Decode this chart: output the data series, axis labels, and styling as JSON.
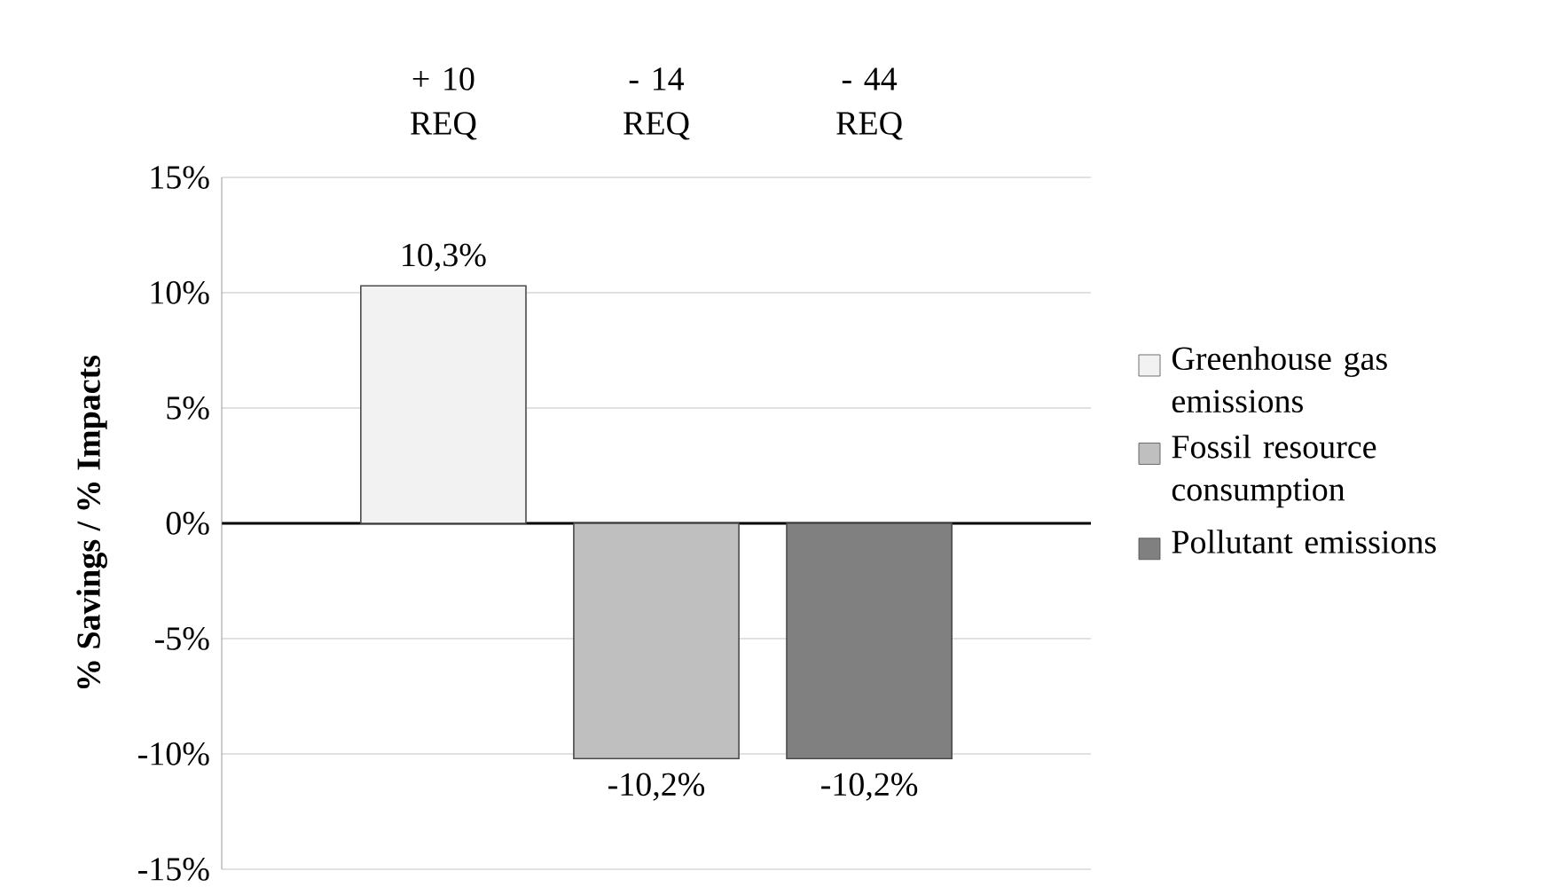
{
  "chart_data": {
    "type": "bar",
    "ylabel": "% Savings / % Impacts",
    "categories": [
      null
    ],
    "series": [
      {
        "name": "Greenhouse gas emissions",
        "color": "#f2f2f2",
        "values": [
          10.3
        ],
        "value_labels": [
          "10,3%"
        ]
      },
      {
        "name": "Fossil resource consumption",
        "color": "#bfbfbf",
        "values": [
          -10.2
        ],
        "value_labels": [
          "-10,2%"
        ]
      },
      {
        "name": "Pollutant emissions",
        "color": "#808080",
        "values": [
          -10.2
        ],
        "value_labels": [
          "-10,2%"
        ]
      }
    ],
    "annotations": [
      "+ 10 REQ",
      "- 14 REQ",
      "- 44 REQ"
    ],
    "ylim": [
      -15,
      15
    ],
    "yticks": [
      {
        "value": -15,
        "label": "-15%"
      },
      {
        "value": -10,
        "label": "-10%"
      },
      {
        "value": -5,
        "label": "-5%"
      },
      {
        "value": 0,
        "label": "0%"
      },
      {
        "value": 5,
        "label": "5%"
      },
      {
        "value": 10,
        "label": "10%"
      },
      {
        "value": 15,
        "label": "15%"
      }
    ],
    "grid": "y",
    "legend": "right"
  }
}
